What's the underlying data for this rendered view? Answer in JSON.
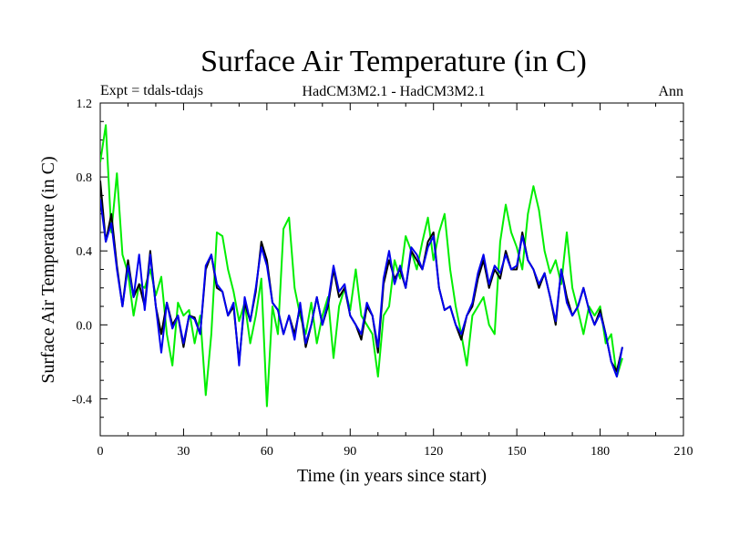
{
  "chart_data": {
    "type": "line",
    "title": "Surface Air Temperature (in C)",
    "subtitle_left": "Expt = tdals-tdajs",
    "subtitle_center": "HadCM3M2.1 - HadCM3M2.1",
    "subtitle_right": "Ann",
    "xlabel": "Time (in years since start)",
    "ylabel": "Surface Air Temperature (in C)",
    "xlim": [
      0,
      210
    ],
    "ylim": [
      -0.6,
      1.2
    ],
    "x_ticks": [
      0,
      30,
      60,
      90,
      120,
      150,
      180,
      210
    ],
    "x_tick_labels": [
      "0",
      "30",
      "60",
      "90",
      "120",
      "150",
      "180",
      "210"
    ],
    "y_ticks": [
      -0.4,
      0.0,
      0.4,
      0.8,
      1.2
    ],
    "y_tick_labels": [
      "-0.4",
      "0.0",
      "0.4",
      "0.8",
      "1.2"
    ],
    "x_start": 0,
    "x_step": 2,
    "series": [
      {
        "name": "green",
        "color": "#00ee00",
        "values": [
          0.88,
          1.08,
          0.5,
          0.82,
          0.38,
          0.28,
          0.05,
          0.22,
          0.2,
          0.3,
          0.16,
          0.26,
          -0.05,
          -0.22,
          0.12,
          0.05,
          0.08,
          -0.1,
          0.05,
          -0.38,
          -0.05,
          0.5,
          0.48,
          0.3,
          0.18,
          0.02,
          0.12,
          -0.1,
          0.05,
          0.25,
          -0.44,
          0.1,
          -0.05,
          0.52,
          0.58,
          0.2,
          0.05,
          -0.05,
          0.12,
          -0.1,
          0.05,
          0.15,
          -0.18,
          0.1,
          0.2,
          0.08,
          0.3,
          0.05,
          0.0,
          -0.05,
          -0.28,
          0.05,
          0.1,
          0.35,
          0.25,
          0.48,
          0.4,
          0.3,
          0.45,
          0.58,
          0.35,
          0.5,
          0.6,
          0.3,
          0.1,
          -0.05,
          -0.22,
          0.05,
          0.1,
          0.15,
          0.0,
          -0.05,
          0.45,
          0.65,
          0.5,
          0.42,
          0.3,
          0.6,
          0.75,
          0.62,
          0.4,
          0.28,
          0.35,
          0.22,
          0.5,
          0.2,
          0.08,
          -0.05,
          0.1,
          0.05,
          0.1,
          -0.1,
          -0.05,
          -0.28,
          -0.18
        ]
      },
      {
        "name": "black",
        "color": "#000000",
        "values": [
          0.78,
          0.45,
          0.6,
          0.32,
          0.1,
          0.35,
          0.15,
          0.22,
          0.1,
          0.4,
          0.1,
          -0.05,
          0.12,
          0.0,
          0.05,
          -0.12,
          0.05,
          0.04,
          -0.05,
          0.3,
          0.38,
          0.2,
          0.18,
          0.05,
          0.1,
          -0.2,
          0.12,
          0.02,
          0.18,
          0.45,
          0.35,
          0.12,
          0.08,
          -0.05,
          0.05,
          -0.05,
          0.1,
          -0.12,
          0.0,
          0.15,
          0.0,
          0.1,
          0.3,
          0.15,
          0.2,
          0.05,
          0.0,
          -0.08,
          0.1,
          0.05,
          -0.15,
          0.22,
          0.35,
          0.25,
          0.3,
          0.2,
          0.4,
          0.35,
          0.3,
          0.45,
          0.5,
          0.2,
          0.08,
          0.1,
          0.0,
          -0.08,
          0.05,
          0.1,
          0.25,
          0.35,
          0.2,
          0.3,
          0.25,
          0.4,
          0.3,
          0.3,
          0.5,
          0.35,
          0.3,
          0.2,
          0.28,
          0.15,
          0.0,
          0.3,
          0.15,
          0.05,
          0.1,
          0.2,
          0.08,
          0.0,
          0.08,
          -0.05,
          -0.2,
          -0.25,
          -0.12
        ]
      },
      {
        "name": "blue",
        "color": "#0000ee",
        "values": [
          0.68,
          0.45,
          0.55,
          0.3,
          0.1,
          0.32,
          0.15,
          0.38,
          0.08,
          0.38,
          0.1,
          -0.15,
          0.12,
          -0.02,
          0.05,
          -0.1,
          0.05,
          0.03,
          -0.05,
          0.32,
          0.38,
          0.22,
          0.18,
          0.05,
          0.12,
          -0.22,
          0.15,
          0.02,
          0.2,
          0.42,
          0.32,
          0.12,
          0.08,
          -0.05,
          0.05,
          -0.08,
          0.12,
          -0.1,
          0.0,
          0.15,
          0.0,
          0.12,
          0.32,
          0.18,
          0.22,
          0.05,
          0.0,
          -0.05,
          0.12,
          0.05,
          -0.12,
          0.25,
          0.4,
          0.22,
          0.32,
          0.2,
          0.42,
          0.38,
          0.3,
          0.42,
          0.48,
          0.2,
          0.08,
          0.1,
          0.0,
          -0.05,
          0.05,
          0.12,
          0.28,
          0.38,
          0.22,
          0.32,
          0.28,
          0.38,
          0.3,
          0.32,
          0.48,
          0.35,
          0.3,
          0.22,
          0.28,
          0.15,
          0.02,
          0.3,
          0.12,
          0.05,
          0.1,
          0.2,
          0.08,
          0.0,
          0.06,
          -0.05,
          -0.2,
          -0.28,
          -0.12
        ]
      }
    ]
  }
}
